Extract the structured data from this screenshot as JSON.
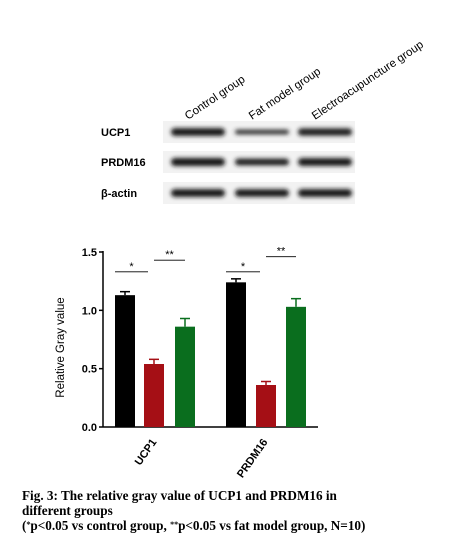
{
  "blot": {
    "columns": [
      "Control group",
      "Fat model group",
      "Electroacupuncture group"
    ],
    "rows": [
      {
        "label": "UCP1",
        "intensity": [
          0.95,
          0.35,
          0.85
        ]
      },
      {
        "label": "PRDM16",
        "intensity": [
          1.0,
          0.75,
          0.95
        ]
      },
      {
        "label": "β-actin",
        "intensity": [
          0.95,
          0.9,
          0.95
        ]
      }
    ]
  },
  "chart_data": {
    "type": "bar",
    "categories": [
      "UCP1",
      "PRDM16"
    ],
    "series": [
      {
        "values": [
          1.13,
          1.24
        ],
        "errors": [
          0.03,
          0.03
        ],
        "color": "#000000"
      },
      {
        "values": [
          0.54,
          0.36
        ],
        "errors": [
          0.04,
          0.03
        ],
        "color": "#a50f15"
      },
      {
        "values": [
          0.86,
          1.03
        ],
        "errors": [
          0.07,
          0.07
        ],
        "color": "#0a6e1e"
      }
    ],
    "ylabel": "Relative Gray value",
    "ylim": [
      0,
      1.5
    ],
    "yticks": [
      "0.0",
      "0.5",
      "1.0",
      "1.5"
    ],
    "significance": [
      {
        "category": 0,
        "from": 0,
        "to": 1,
        "label": "*",
        "y": 1.33
      },
      {
        "category": 0,
        "from": 1,
        "to": 2,
        "label": "**",
        "y": 1.43
      },
      {
        "category": 1,
        "from": 0,
        "to": 1,
        "label": "*",
        "y": 1.33
      },
      {
        "category": 1,
        "from": 1,
        "to": 2,
        "label": "**",
        "y": 1.46
      }
    ],
    "grid": false,
    "legend": "none"
  },
  "caption": {
    "line1": "Fig. 3: The relative gray value of UCP1 and PRDM16 in",
    "line2": "different groups",
    "line3_pre": "(",
    "sup1": "*",
    "line3_mid": "p<0.05 vs control group, ",
    "sup2": "**",
    "line3_post": "p<0.05 vs fat model group, N=10)"
  }
}
